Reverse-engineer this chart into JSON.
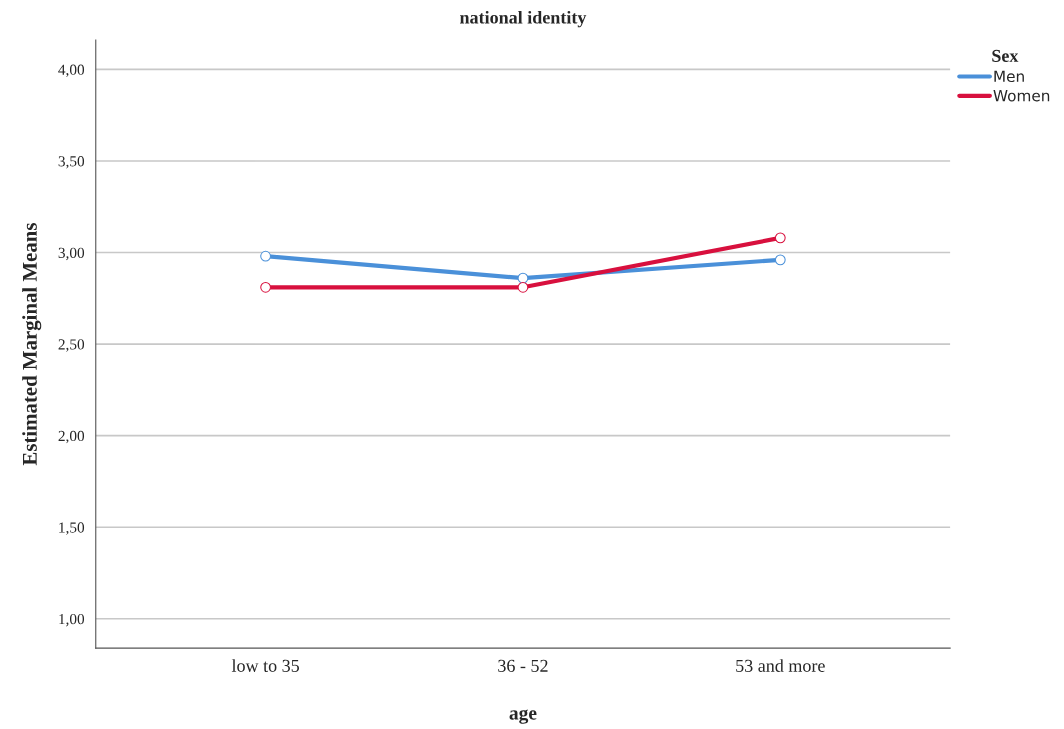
{
  "chart_data": {
    "type": "line",
    "title": "national identity",
    "xlabel": "age",
    "ylabel": "Estimated Marginal Means",
    "legend_title": "Sex",
    "categories": [
      "low to 35",
      "36 - 52",
      "53 and more"
    ],
    "series": [
      {
        "name": "Men",
        "color": "#4a90d9",
        "values": [
          2.98,
          2.86,
          2.96
        ]
      },
      {
        "name": "Women",
        "color": "#d8103e",
        "values": [
          2.81,
          2.81,
          3.08
        ]
      }
    ],
    "ylim": [
      0.84,
      4.16
    ],
    "yticks": [
      {
        "value": 1,
        "label": "1,00"
      },
      {
        "value": 1.5,
        "label": "1,50"
      },
      {
        "value": 2,
        "label": "2,00"
      },
      {
        "value": 2.5,
        "label": "2,50"
      },
      {
        "value": 3,
        "label": "3,00"
      },
      {
        "value": 3.5,
        "label": "3,50"
      },
      {
        "value": 4,
        "label": "4,00"
      }
    ],
    "grid": "y",
    "legend": "top right",
    "marker": "circle",
    "line_style": "solid"
  }
}
